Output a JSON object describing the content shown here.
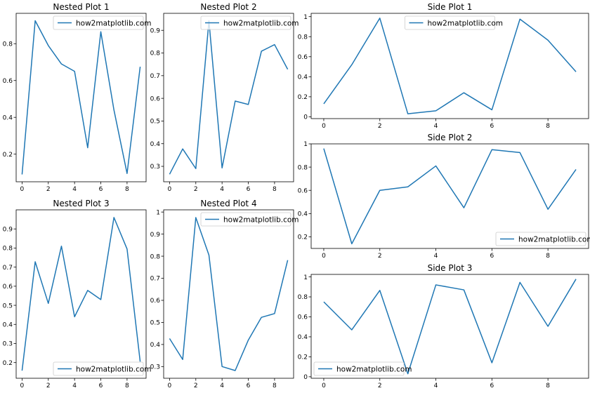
{
  "chart_data": [
    {
      "type": "line",
      "title": "Nested Plot 1",
      "x": [
        0,
        1,
        2,
        3,
        4,
        5,
        6,
        7,
        8,
        9
      ],
      "series": [
        {
          "name": "how2matplotlib.com",
          "values": [
            0.09,
            0.925,
            0.79,
            0.69,
            0.65,
            0.235,
            0.865,
            0.44,
            0.095,
            0.675
          ]
        }
      ],
      "xlim": [
        -0.45,
        9.45
      ],
      "ylim": [
        0.05,
        0.965
      ],
      "xticks": [
        0,
        2,
        4,
        6,
        8
      ],
      "yticks": [
        0.2,
        0.4,
        0.6,
        0.8
      ],
      "legend": "top-right",
      "xlabel": "",
      "ylabel": ""
    },
    {
      "type": "line",
      "title": "Nested Plot 2",
      "x": [
        0,
        1,
        2,
        3,
        4,
        5,
        6,
        7,
        8,
        9
      ],
      "series": [
        {
          "name": "how2matplotlib.com",
          "values": [
            0.265,
            0.377,
            0.29,
            0.942,
            0.293,
            0.588,
            0.573,
            0.808,
            0.837,
            0.728
          ]
        }
      ],
      "xlim": [
        -0.45,
        9.45
      ],
      "ylim": [
        0.232,
        0.975
      ],
      "xticks": [
        0,
        2,
        4,
        6,
        8
      ],
      "yticks": [
        0.3,
        0.4,
        0.5,
        0.6,
        0.7,
        0.8,
        0.9
      ],
      "legend": "top-right",
      "xlabel": "",
      "ylabel": ""
    },
    {
      "type": "line",
      "title": "Side Plot 1",
      "x": [
        0,
        1,
        2,
        3,
        4,
        5,
        6,
        7,
        8,
        9
      ],
      "series": [
        {
          "name": "how2matplotlib.com",
          "values": [
            0.13,
            0.52,
            0.985,
            0.03,
            0.06,
            0.24,
            0.07,
            0.975,
            0.765,
            0.45
          ]
        }
      ],
      "xlim": [
        -0.45,
        9.45
      ],
      "ylim": [
        -0.018,
        1.033
      ],
      "xticks": [
        0,
        2,
        4,
        6,
        8
      ],
      "yticks": [
        0.0,
        0.2,
        0.4,
        0.6,
        0.8,
        1.0
      ],
      "legend": "top-center",
      "xlabel": "",
      "ylabel": ""
    },
    {
      "type": "line",
      "title": "Nested Plot 3",
      "x": [
        0,
        1,
        2,
        3,
        4,
        5,
        6,
        7,
        8,
        9
      ],
      "series": [
        {
          "name": "how2matplotlib.com",
          "values": [
            0.158,
            0.728,
            0.51,
            0.81,
            0.44,
            0.578,
            0.53,
            0.96,
            0.795,
            0.205
          ]
        }
      ],
      "xlim": [
        -0.45,
        9.45
      ],
      "ylim": [
        0.118,
        1.0
      ],
      "xticks": [
        0,
        2,
        4,
        6,
        8
      ],
      "yticks": [
        0.2,
        0.3,
        0.4,
        0.5,
        0.6,
        0.7,
        0.8,
        0.9
      ],
      "legend": "bottom-right",
      "xlabel": "",
      "ylabel": ""
    },
    {
      "type": "line",
      "title": "Nested Plot 4",
      "x": [
        0,
        1,
        2,
        3,
        4,
        5,
        6,
        7,
        8,
        9
      ],
      "series": [
        {
          "name": "how2matplotlib.com",
          "values": [
            0.427,
            0.332,
            0.975,
            0.805,
            0.3,
            0.282,
            0.42,
            0.523,
            0.54,
            0.782
          ]
        }
      ],
      "xlim": [
        -0.45,
        9.45
      ],
      "ylim": [
        0.247,
        1.01
      ],
      "xticks": [
        0,
        2,
        4,
        6,
        8
      ],
      "yticks": [
        0.3,
        0.4,
        0.5,
        0.6,
        0.7,
        0.8,
        0.9,
        1.0
      ],
      "legend": "top-right",
      "xlabel": "",
      "ylabel": ""
    },
    {
      "type": "line",
      "title": "Side Plot 2",
      "x": [
        0,
        1,
        2,
        3,
        4,
        5,
        6,
        7,
        8,
        9
      ],
      "series": [
        {
          "name": "how2matplotlib.com",
          "values": [
            0.96,
            0.14,
            0.6,
            0.63,
            0.81,
            0.45,
            0.95,
            0.925,
            0.437,
            0.78
          ]
        }
      ],
      "xlim": [
        -0.45,
        9.45
      ],
      "ylim": [
        0.1,
        1.0
      ],
      "xticks": [
        0,
        2,
        4,
        6,
        8
      ],
      "yticks": [
        0.2,
        0.4,
        0.6,
        0.8,
        1.0
      ],
      "legend": "bottom-right",
      "xlabel": "",
      "ylabel": ""
    },
    {
      "type": "line",
      "title": "Side Plot 3",
      "x": [
        0,
        1,
        2,
        3,
        4,
        5,
        6,
        7,
        8,
        9
      ],
      "series": [
        {
          "name": "how2matplotlib.com",
          "values": [
            0.75,
            0.47,
            0.865,
            0.03,
            0.92,
            0.87,
            0.14,
            0.945,
            0.505,
            0.978
          ]
        }
      ],
      "xlim": [
        -0.45,
        9.45
      ],
      "ylim": [
        -0.015,
        1.025
      ],
      "xticks": [
        0,
        2,
        4,
        6,
        8
      ],
      "yticks": [
        0.0,
        0.2,
        0.4,
        0.6,
        0.8,
        1.0
      ],
      "legend": "bottom-left",
      "xlabel": "",
      "ylabel": ""
    }
  ],
  "style": {
    "line_color": "#1f77b4",
    "axis_color": "#000000",
    "legend_border": "#cccccc",
    "background": "#ffffff"
  }
}
